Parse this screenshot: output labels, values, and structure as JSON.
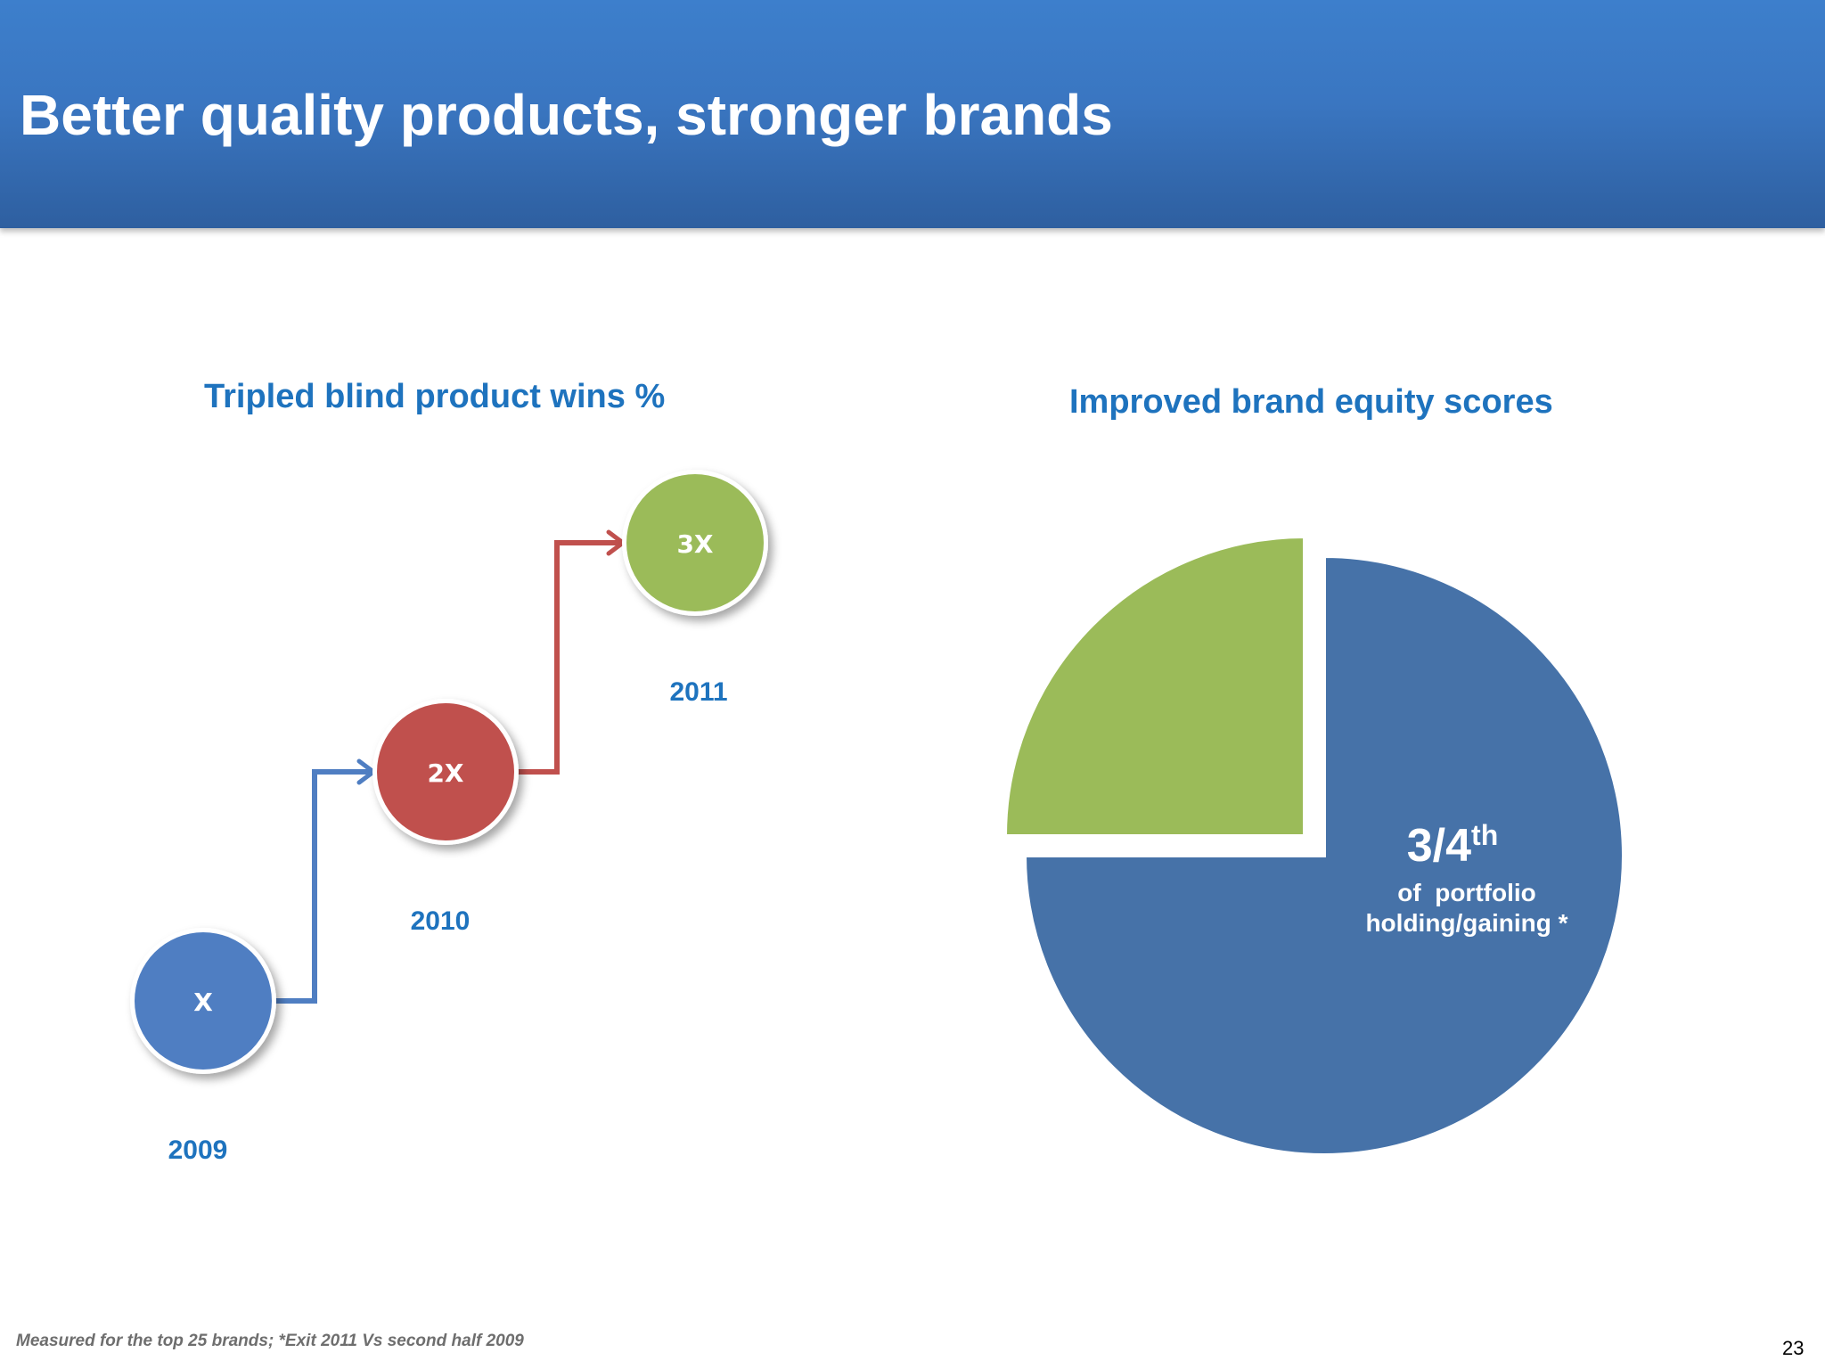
{
  "slide": {
    "title": "Better quality products, stronger brands",
    "footnote": "Measured for the top 25 brands; *Exit 2011 Vs second half 2009",
    "page_number": "23"
  },
  "colors": {
    "header": "#3a76c1",
    "title_text": "#1e73be",
    "blue": "#4f7ec2",
    "red": "#c0504d",
    "green": "#9bbb59",
    "pie_blue": "#4672a8",
    "pie_green": "#9bbb59"
  },
  "chart_data": [
    {
      "type": "scatter",
      "title": "Tripled blind product wins %",
      "categories": [
        "2009",
        "2010",
        "2011"
      ],
      "labels": [
        "X",
        "2X",
        "3X"
      ],
      "values": [
        1,
        2,
        3
      ]
    },
    {
      "type": "pie",
      "title": "Improved brand equity scores",
      "slices": [
        {
          "value": 0.75,
          "label": "3/4",
          "label_sup": "th",
          "sublabel_1": "of  portfolio",
          "sublabel_2": "holding/gaining *"
        },
        {
          "value": 0.25
        }
      ]
    }
  ]
}
